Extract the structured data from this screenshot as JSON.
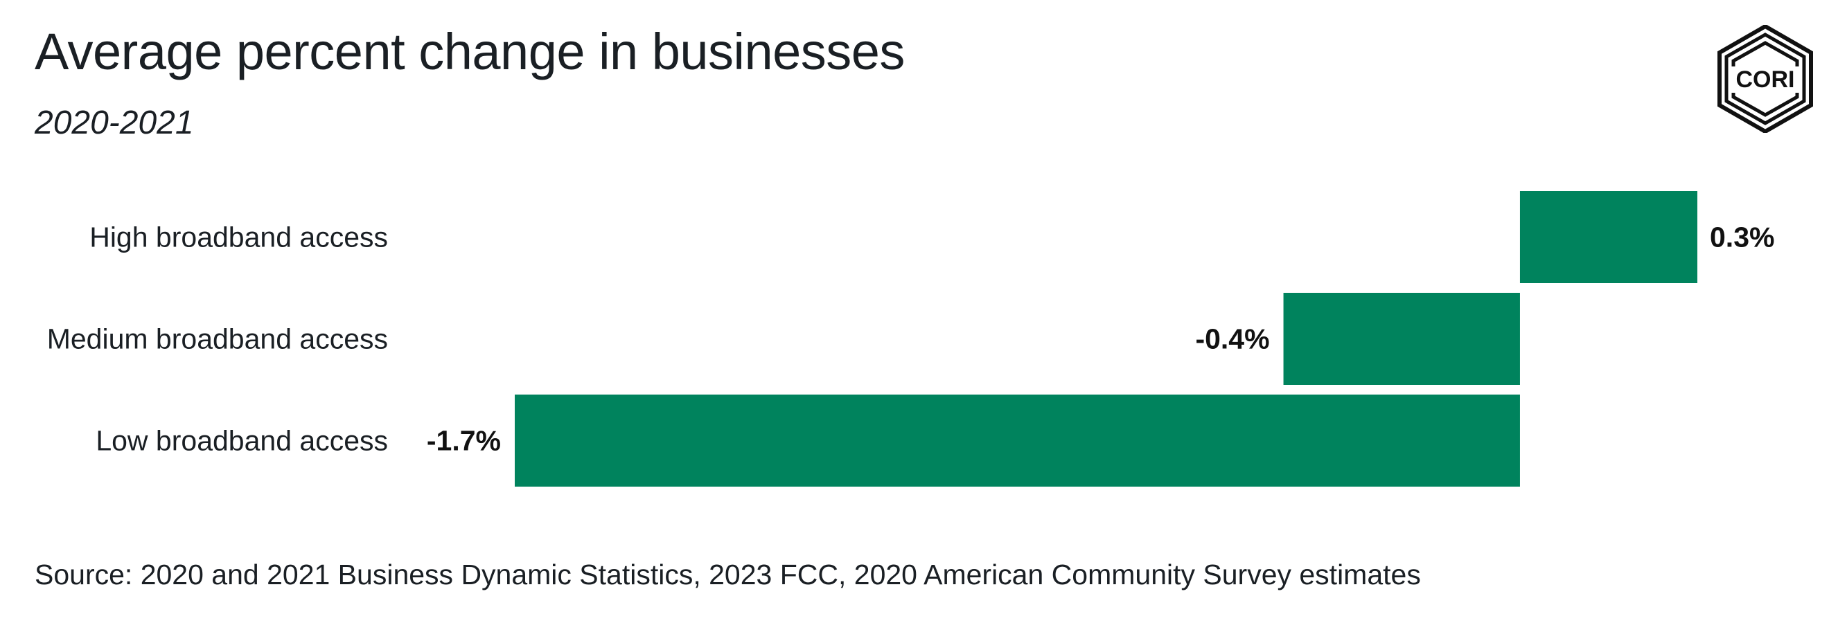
{
  "title": "Average percent change in businesses",
  "subtitle": "2020-2021",
  "source": "Source: 2020 and 2021 Business Dynamic Statistics, 2023 FCC, 2020 American Community Survey estimates",
  "logo": {
    "text": "CORI",
    "icon": "cori-logo-icon"
  },
  "colors": {
    "bar": "#00835d",
    "text": "#1a1f24"
  },
  "chart_data": {
    "type": "bar",
    "orientation": "horizontal",
    "title": "Average percent change in businesses",
    "subtitle": "2020-2021",
    "categories": [
      "High broadband access",
      "Medium broadband access",
      "Low broadband access"
    ],
    "values": [
      0.3,
      -0.4,
      -1.7
    ],
    "value_labels": [
      "0.3%",
      "-0.4%",
      "-1.7%"
    ],
    "unit": "%",
    "xlim": [
      -1.7,
      0.3
    ],
    "grid": false,
    "legend": "none"
  }
}
